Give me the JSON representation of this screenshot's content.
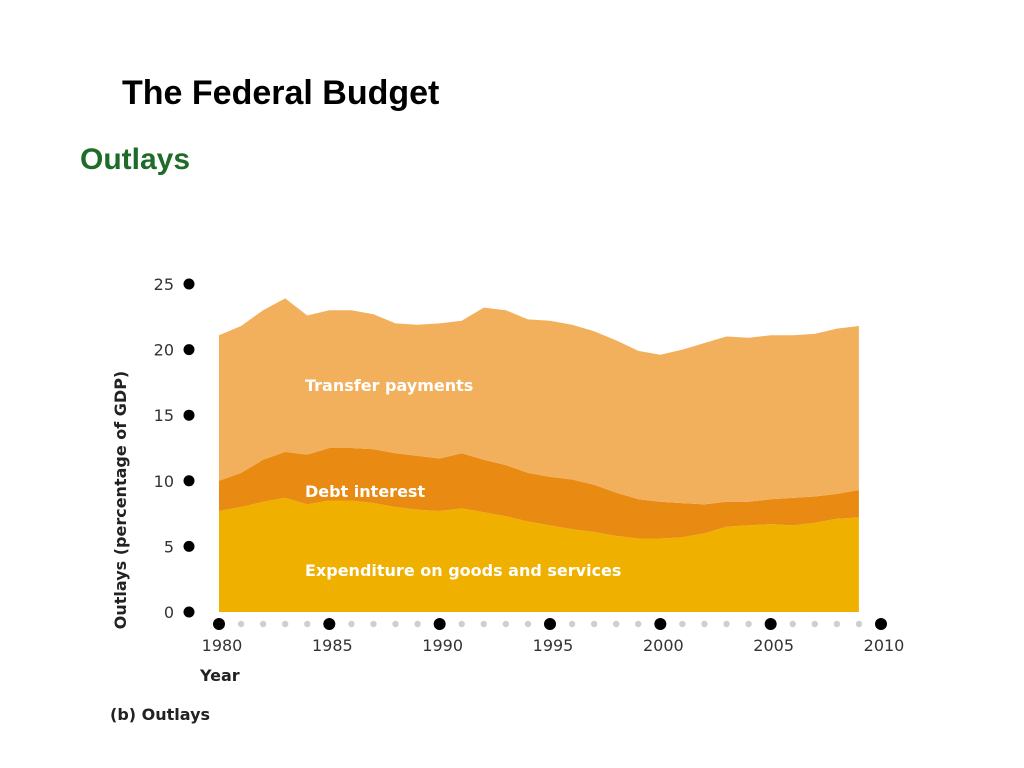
{
  "slide": {
    "title": "The Federal Budget",
    "subtitle": "Outlays",
    "subtitle_color": "#1f6b2a"
  },
  "chart_data": {
    "type": "area",
    "stacked": true,
    "xlabel": "Year",
    "ylabel": "Outlays (percentage of GDP)",
    "caption": "(b) Outlays",
    "xlim": [
      1980,
      2010
    ],
    "ylim": [
      0,
      25
    ],
    "x_ticks": [
      1980,
      1985,
      1990,
      1995,
      2000,
      2005,
      2010
    ],
    "y_ticks": [
      0,
      5,
      10,
      15,
      20,
      25
    ],
    "grid": false,
    "x": [
      1980,
      1981,
      1982,
      1983,
      1984,
      1985,
      1986,
      1987,
      1988,
      1989,
      1990,
      1991,
      1992,
      1993,
      1994,
      1995,
      1996,
      1997,
      1998,
      1999,
      2000,
      2001,
      2002,
      2003,
      2004,
      2005,
      2006,
      2007,
      2008,
      2009
    ],
    "series": [
      {
        "name": "Expenditure on goods and services",
        "color": "#f0b000",
        "values": [
          7.7,
          8.0,
          8.4,
          8.7,
          8.2,
          8.5,
          8.5,
          8.3,
          8.0,
          7.8,
          7.7,
          7.9,
          7.6,
          7.3,
          6.9,
          6.6,
          6.3,
          6.1,
          5.8,
          5.6,
          5.6,
          5.7,
          6.0,
          6.5,
          6.6,
          6.7,
          6.6,
          6.8,
          7.1,
          7.2
        ]
      },
      {
        "name": "Debt interest",
        "color": "#e98a12",
        "values": [
          2.3,
          2.6,
          3.2,
          3.5,
          3.8,
          4.0,
          4.0,
          4.1,
          4.1,
          4.1,
          4.0,
          4.2,
          4.0,
          3.9,
          3.7,
          3.7,
          3.8,
          3.6,
          3.3,
          3.0,
          2.8,
          2.6,
          2.2,
          1.9,
          1.8,
          1.9,
          2.1,
          2.0,
          1.9,
          2.1
        ]
      },
      {
        "name": "Transfer payments",
        "color": "#f2b05c",
        "values": [
          11.1,
          11.2,
          11.4,
          11.7,
          10.6,
          10.5,
          10.5,
          10.3,
          9.9,
          10.0,
          10.3,
          10.1,
          11.6,
          11.8,
          11.7,
          11.9,
          11.8,
          11.7,
          11.6,
          11.3,
          11.2,
          11.7,
          12.3,
          12.6,
          12.5,
          12.5,
          12.4,
          12.4,
          12.6,
          12.5
        ]
      }
    ]
  }
}
